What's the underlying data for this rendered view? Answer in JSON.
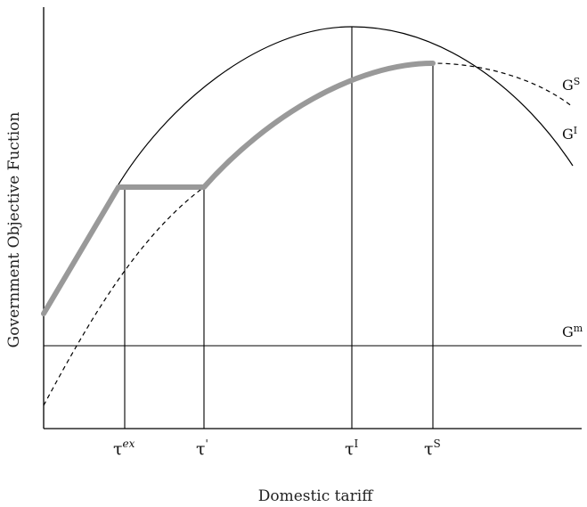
{
  "chart_data": {
    "type": "line",
    "title": "",
    "xlabel": "Domestic tariff",
    "ylabel": "Government Objective Fuction",
    "grid": false,
    "legend": "none",
    "curves": [
      {
        "base": "G",
        "sup": "S",
        "style": "dashed",
        "color": "#000000"
      },
      {
        "base": "G",
        "sup": "I",
        "style": "solid",
        "color": "#000000"
      },
      {
        "base": "G",
        "sup": "m",
        "style": "solid",
        "color": "#000000"
      }
    ],
    "highlight": {
      "style": "thick",
      "color": "#999999"
    },
    "ticks": [
      {
        "base": "τ",
        "sup": "ex",
        "italic_sup": true
      },
      {
        "base": "τ",
        "sup": "'",
        "italic_sup": false
      },
      {
        "base": "τ",
        "sup": "I",
        "italic_sup": false
      },
      {
        "base": "τ",
        "sup": "S",
        "italic_sup": false
      }
    ]
  }
}
